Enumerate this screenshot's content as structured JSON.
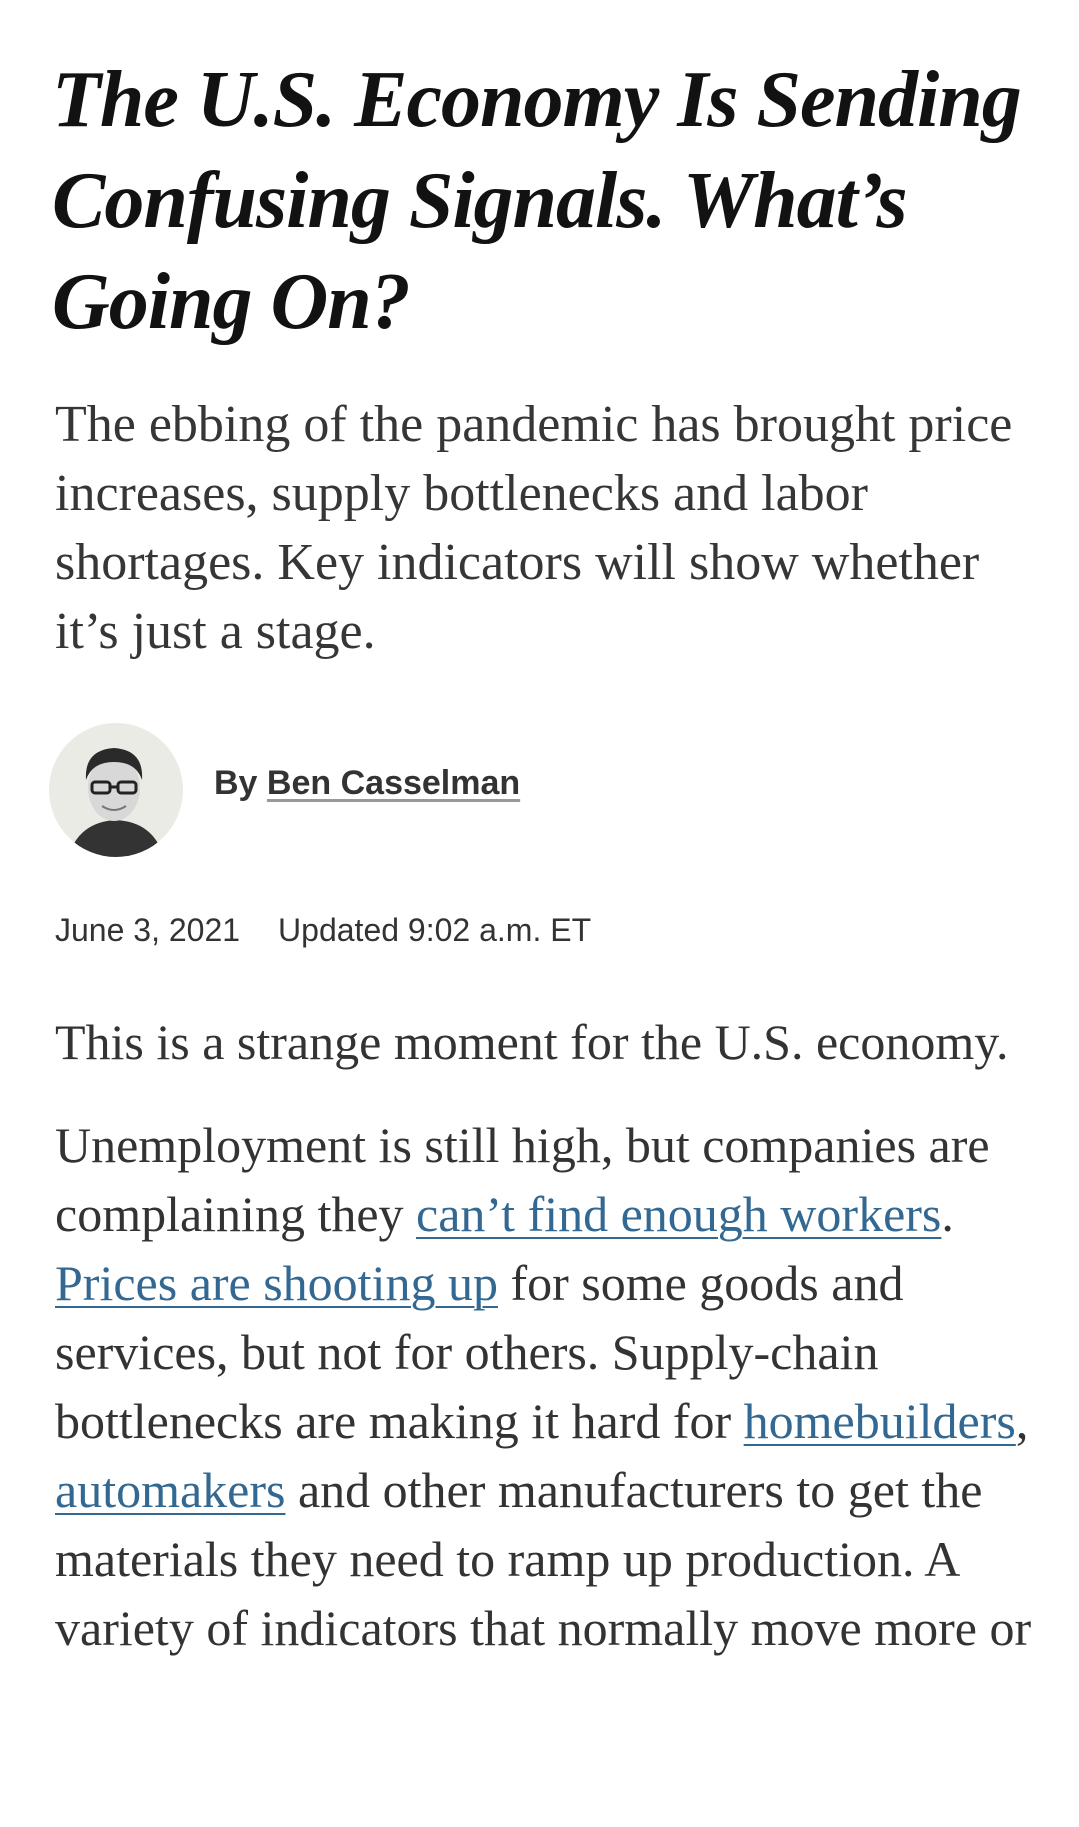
{
  "article": {
    "headline": "The U.S. Economy Is Sending Confusing Signals. What’s Going On?",
    "summary": "The ebbing of the pandemic has brought price increases, supply bottlenecks and labor shortages. Key indicators will show whether it’s just a stage.",
    "byline": {
      "prefix": "By",
      "author": "Ben Casselman"
    },
    "date": "June 3, 2021",
    "updated": "Updated 9:02 a.m. ET",
    "paragraphs": [
      [
        {
          "text": "This is a strange moment for the U.S. economy."
        }
      ],
      [
        {
          "text": "Unemployment is still high, but companies are complaining they "
        },
        {
          "link": "can’t find enough workers"
        },
        {
          "text": ". "
        },
        {
          "link": "Prices are shooting up"
        },
        {
          "text": " for some goods and services, but not for others. Supply-chain bottlenecks are making it hard for "
        },
        {
          "link": "homebuilders"
        },
        {
          "text": ", "
        },
        {
          "link": "automakers"
        },
        {
          "text": " and other manufacturers to get the materials they need to ramp up production. A variety of indicators that normally move more or"
        }
      ]
    ]
  }
}
